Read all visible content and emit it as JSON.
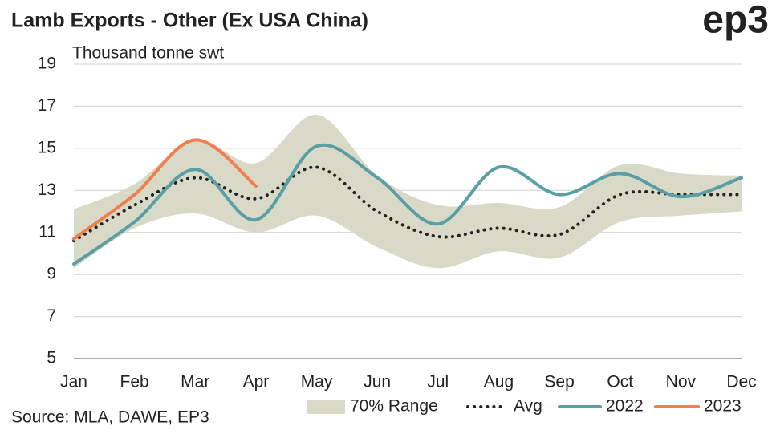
{
  "chart_data": {
    "type": "line",
    "title": "Lamb Exports - Other (Ex USA China)",
    "logo": "ep3",
    "y_label": "Thousand tonne swt",
    "source": "Source: MLA, DAWE, EP3",
    "categories": [
      "Jan",
      "Feb",
      "Mar",
      "Apr",
      "May",
      "Jun",
      "Jul",
      "Aug",
      "Sep",
      "Oct",
      "Nov",
      "Dec"
    ],
    "ylim": [
      5,
      19
    ],
    "yticks": [
      5,
      7,
      9,
      11,
      13,
      15,
      17,
      19
    ],
    "grid": true,
    "range": {
      "name": "70% Range",
      "color": "#d9d9c7",
      "low": [
        9.3,
        11.2,
        11.9,
        11.0,
        11.8,
        10.3,
        9.3,
        10.1,
        9.8,
        11.5,
        11.8,
        12.0
      ],
      "high": [
        12.1,
        13.3,
        15.4,
        14.3,
        16.6,
        13.7,
        12.3,
        12.4,
        12.2,
        14.2,
        13.8,
        13.7
      ]
    },
    "series": [
      {
        "name": "Avg",
        "color": "#222222",
        "dotted": true,
        "values": [
          10.6,
          12.3,
          13.6,
          12.6,
          14.1,
          12.0,
          10.8,
          11.2,
          10.9,
          12.8,
          12.8,
          12.8
        ]
      },
      {
        "name": "2022",
        "color": "#5a9ea6",
        "values": [
          9.5,
          11.5,
          14.0,
          11.6,
          15.1,
          13.6,
          11.4,
          14.1,
          12.8,
          13.8,
          12.7,
          13.6
        ]
      },
      {
        "name": "2023",
        "color": "#f07f4f",
        "values": [
          10.7,
          12.8,
          15.4,
          13.2,
          null,
          null,
          null,
          null,
          null,
          null,
          null,
          null
        ]
      }
    ]
  }
}
